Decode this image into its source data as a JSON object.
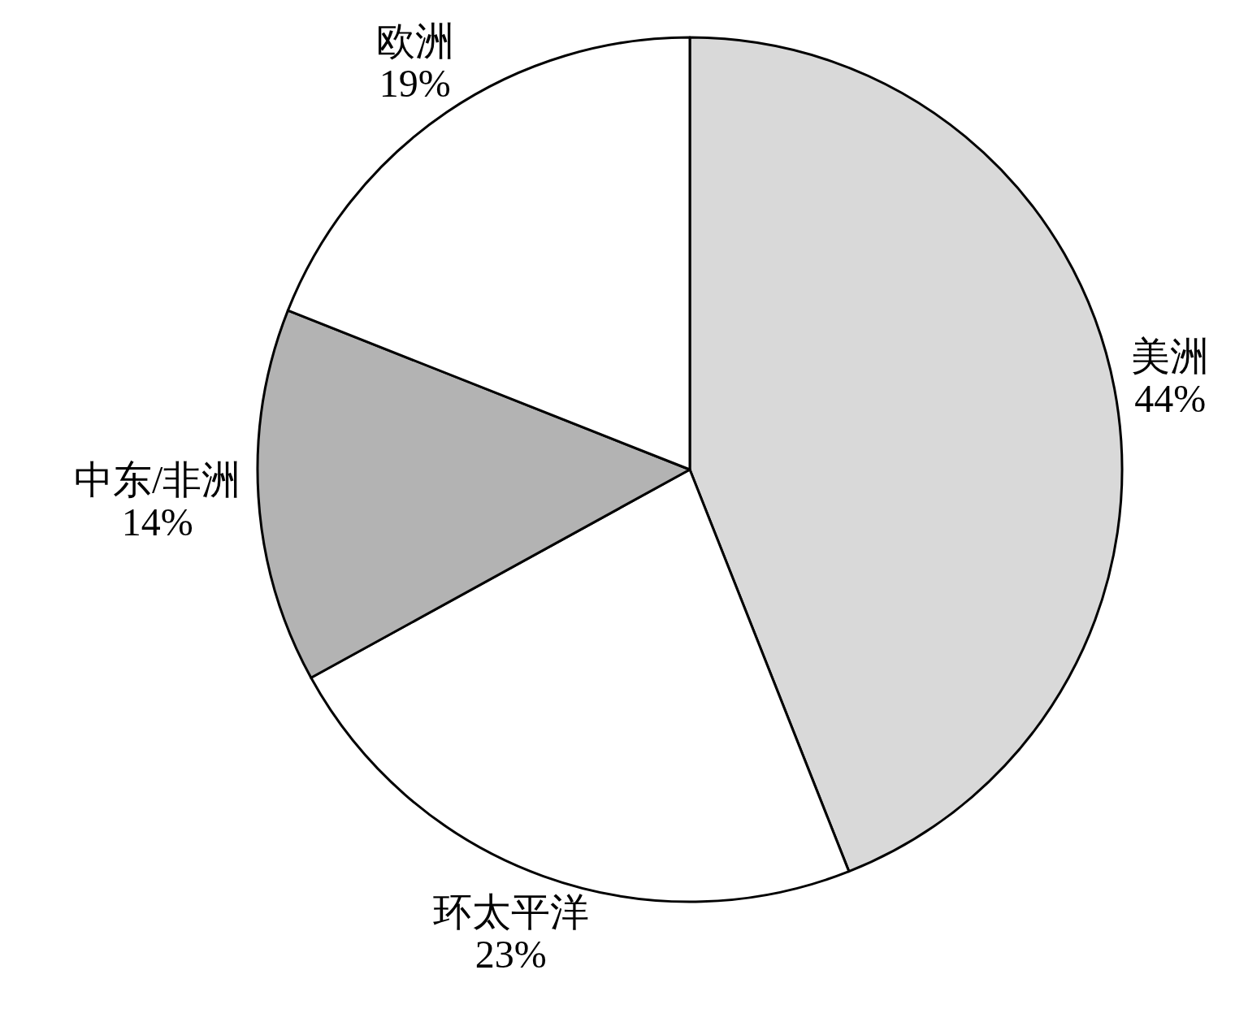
{
  "chart_data": {
    "type": "pie",
    "categories": [
      "美洲",
      "环太平洋",
      "中东/非洲",
      "欧洲"
    ],
    "values": [
      44,
      23,
      14,
      19
    ],
    "value_labels": [
      "44%",
      "23%",
      "14%",
      "19%"
    ],
    "colors": [
      "#d9d9d9",
      "#ffffff",
      "#b3b3b3",
      "#ffffff"
    ]
  }
}
